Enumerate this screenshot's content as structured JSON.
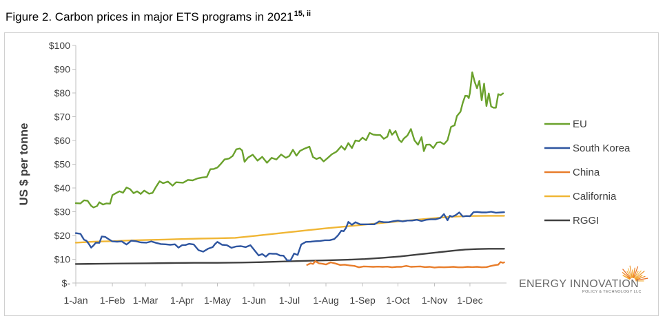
{
  "title": {
    "main": "Figure 2. Carbon prices in major ETS programs in 2021",
    "superscript": "15, ii"
  },
  "logo": {
    "main": "ENERGY INNOVATION",
    "sub": "POLICY & TECHNOLOGY LLC"
  },
  "chart_data": {
    "type": "line",
    "title": "Carbon prices in major ETS programs in 2021",
    "xlabel": "",
    "ylabel": "US $ per tonne",
    "ylim": [
      0,
      100
    ],
    "xlim": [
      0,
      365
    ],
    "yticks": [
      0,
      10,
      20,
      30,
      40,
      50,
      60,
      70,
      80,
      90,
      100
    ],
    "ytick_labels": [
      "$-",
      "$10",
      "$20",
      "$30",
      "$40",
      "$50",
      "$60",
      "$70",
      "$80",
      "$90",
      "$100"
    ],
    "xticks": [
      0,
      31,
      59,
      90,
      120,
      151,
      181,
      212,
      243,
      273,
      304,
      334
    ],
    "xtick_labels": [
      "1-Jan",
      "1-Feb",
      "1-Mar",
      "1-Apr",
      "1-May",
      "1-Jun",
      "1-Jul",
      "1-Aug",
      "1-Sep",
      "1-Oct",
      "1-Nov",
      "1-Dec"
    ],
    "grid": false,
    "legend_position": "right",
    "series": [
      {
        "name": "EU",
        "color": "#6aa12c",
        "x": [
          0,
          4,
          7,
          10,
          13,
          15,
          18,
          20,
          23,
          26,
          29,
          31,
          34,
          37,
          40,
          43,
          46,
          49,
          52,
          55,
          58,
          62,
          65,
          68,
          71,
          74,
          78,
          82,
          85,
          88,
          91,
          95,
          99,
          103,
          107,
          111,
          114,
          117,
          120,
          123,
          126,
          130,
          133,
          136,
          139,
          141,
          143,
          146,
          150,
          154,
          158,
          162,
          166,
          170,
          174,
          178,
          181,
          184,
          187,
          190,
          194,
          198,
          201,
          204,
          207,
          210,
          213,
          217,
          221,
          225,
          228,
          231,
          234,
          237,
          240,
          243,
          246,
          249,
          252,
          255,
          258,
          261,
          264,
          266,
          268,
          271,
          274,
          276,
          278,
          281,
          284,
          287,
          290,
          293,
          295,
          297,
          300,
          303,
          306,
          309,
          312,
          315,
          318,
          321,
          323,
          326,
          328,
          330,
          332,
          333,
          334,
          336,
          338,
          340,
          342,
          344,
          346,
          348,
          350,
          352,
          354,
          356,
          358,
          360,
          362
        ],
        "values": [
          33.6,
          33.5,
          34.8,
          34.6,
          32.5,
          31.8,
          32.4,
          34.0,
          33.0,
          33.5,
          33.4,
          37.0,
          37.8,
          38.6,
          38.0,
          40.2,
          39.5,
          37.8,
          38.6,
          37.5,
          38.9,
          37.6,
          37.9,
          40.5,
          42.8,
          42.0,
          42.7,
          41.0,
          42.4,
          42.3,
          42.2,
          43.4,
          43.2,
          44.0,
          44.4,
          44.6,
          47.9,
          48.0,
          48.6,
          50.2,
          52.0,
          52.4,
          53.5,
          56.3,
          56.6,
          55.8,
          51.0,
          52.8,
          54.0,
          51.5,
          53.1,
          50.6,
          52.7,
          52.0,
          54.1,
          52.7,
          53.5,
          56.1,
          53.6,
          55.6,
          56.6,
          57.4,
          53.0,
          52.2,
          52.8,
          51.2,
          52.4,
          54.2,
          55.3,
          57.6,
          56.1,
          58.9,
          56.8,
          60.0,
          59.7,
          61.2,
          60.1,
          63.2,
          62.5,
          62.3,
          62.3,
          60.7,
          61.6,
          64.5,
          62.4,
          64.0,
          60.2,
          59.3,
          60.8,
          62.1,
          64.8,
          60.1,
          58.2,
          61.4,
          55.5,
          58.2,
          58.3,
          56.8,
          59.1,
          59.3,
          58.4,
          60.1,
          65.7,
          66.4,
          70.3,
          72.1,
          75.9,
          78.8,
          78.7,
          77.8,
          80.0,
          88.7,
          84.7,
          82.0,
          85.1,
          76.9,
          83.9,
          74.5,
          79.8,
          74.3,
          73.8,
          73.8,
          79.5,
          79.1,
          79.8
        ]
      },
      {
        "name": "South Korea",
        "color": "#2e55a0",
        "x": [
          0,
          4,
          7,
          9,
          11,
          13,
          15,
          17,
          20,
          22,
          25,
          28,
          31,
          35,
          39,
          43,
          47,
          51,
          55,
          60,
          64,
          68,
          72,
          76,
          80,
          84,
          87,
          90,
          93,
          96,
          100,
          104,
          108,
          112,
          116,
          118,
          120,
          124,
          128,
          132,
          136,
          140,
          144,
          148,
          152,
          155,
          158,
          161,
          164,
          167,
          170,
          173,
          176,
          179,
          182,
          185,
          188,
          191,
          195,
          199,
          203,
          207,
          211,
          215,
          219,
          222,
          225,
          227,
          229,
          231,
          234,
          237,
          241,
          245,
          249,
          253,
          257,
          261,
          265,
          269,
          273,
          277,
          281,
          285,
          289,
          293,
          297,
          301,
          305,
          309,
          312,
          315,
          317,
          319,
          322,
          325,
          328,
          331,
          334,
          337,
          340,
          344,
          348,
          352,
          356,
          360,
          363
        ],
        "values": [
          21.0,
          20.7,
          18.2,
          17.8,
          16.5,
          14.9,
          15.8,
          17.0,
          16.9,
          19.6,
          19.4,
          18.4,
          17.5,
          17.4,
          17.5,
          16.2,
          17.8,
          17.6,
          17.1,
          17.0,
          17.5,
          16.9,
          16.4,
          16.3,
          16.1,
          16.3,
          14.9,
          15.9,
          16.0,
          16.5,
          16.2,
          13.8,
          13.2,
          14.4,
          15.1,
          16.4,
          17.3,
          16.1,
          15.9,
          14.8,
          15.4,
          15.5,
          15.1,
          15.9,
          13.4,
          11.6,
          12.2,
          11.1,
          12.4,
          12.3,
          12.3,
          11.6,
          11.5,
          9.6,
          9.5,
          12.4,
          11.8,
          16.2,
          17.3,
          17.4,
          17.6,
          17.7,
          18.0,
          18.0,
          18.5,
          19.9,
          22.0,
          21.8,
          23.2,
          25.7,
          24.5,
          25.6,
          24.7,
          24.7,
          24.7,
          24.7,
          25.9,
          25.6,
          25.6,
          26.0,
          26.3,
          25.9,
          26.3,
          26.3,
          26.6,
          26.1,
          26.6,
          26.8,
          26.8,
          27.4,
          29.0,
          26.4,
          28.3,
          27.9,
          28.6,
          29.7,
          28.0,
          28.2,
          28.1,
          29.8,
          29.9,
          29.7,
          29.7,
          30.0,
          29.6,
          29.7,
          29.8
        ]
      },
      {
        "name": "China",
        "color": "#e87d2b",
        "x": [
          196,
          199,
          201,
          203,
          206,
          209,
          212,
          216,
          220,
          224,
          228,
          232,
          236,
          240,
          244,
          248,
          252,
          256,
          260,
          264,
          268,
          272,
          276,
          280,
          284,
          288,
          292,
          296,
          300,
          304,
          308,
          312,
          316,
          320,
          324,
          328,
          332,
          336,
          340,
          344,
          348,
          352,
          356,
          358,
          360,
          362,
          363
        ],
        "values": [
          7.6,
          8.3,
          8.0,
          9.2,
          8.3,
          8.1,
          7.8,
          8.7,
          8.2,
          7.6,
          7.7,
          7.4,
          7.2,
          6.6,
          7.0,
          6.9,
          6.8,
          6.9,
          6.8,
          6.9,
          6.6,
          6.8,
          6.8,
          7.2,
          6.8,
          6.9,
          7.0,
          6.7,
          6.8,
          6.5,
          6.7,
          6.6,
          6.7,
          6.8,
          6.6,
          6.6,
          6.8,
          6.7,
          6.8,
          6.6,
          6.7,
          7.2,
          7.6,
          7.7,
          8.8,
          8.5,
          8.7
        ]
      },
      {
        "name": "California",
        "color": "#f0b635",
        "x": [
          0,
          15,
          31,
          45,
          59,
          75,
          90,
          105,
          120,
          135,
          151,
          166,
          181,
          196,
          212,
          227,
          243,
          258,
          273,
          288,
          304,
          319,
          334,
          349,
          363
        ],
        "values": [
          17.0,
          17.4,
          17.6,
          17.9,
          18.1,
          18.3,
          18.5,
          18.7,
          18.8,
          19.0,
          19.8,
          20.6,
          21.4,
          22.2,
          23.0,
          23.7,
          24.5,
          25.2,
          25.9,
          26.6,
          27.3,
          27.9,
          28.2,
          28.3,
          28.3
        ]
      },
      {
        "name": "RGGI",
        "color": "#404040",
        "x": [
          0,
          20,
          40,
          60,
          80,
          100,
          120,
          140,
          160,
          180,
          200,
          215,
          230,
          245,
          260,
          275,
          290,
          305,
          320,
          330,
          340,
          350,
          363
        ],
        "values": [
          8.0,
          8.1,
          8.2,
          8.3,
          8.4,
          8.5,
          8.5,
          8.6,
          8.8,
          9.1,
          9.4,
          9.6,
          9.8,
          10.1,
          10.6,
          11.2,
          12.0,
          12.8,
          13.6,
          14.1,
          14.3,
          14.4,
          14.4
        ]
      }
    ]
  }
}
